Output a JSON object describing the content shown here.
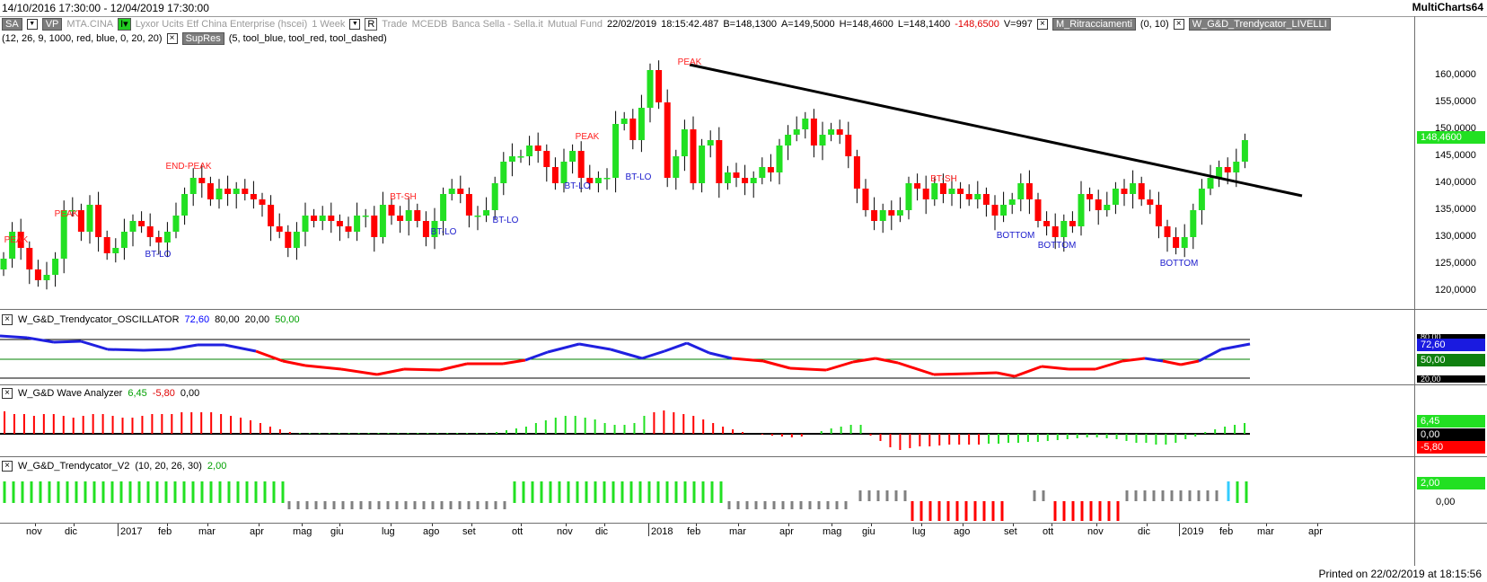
{
  "window": {
    "date_range": "14/10/2016 17:30:00 - 12/04/2019 17:30:00",
    "brand": "MultiCharts64"
  },
  "legend": {
    "row1": {
      "sa_label": "SA",
      "vp_label": "VP",
      "symbol": "MTA.CINA",
      "instrument": "Lyxor Ucits Etf China Enterprise (hscei)",
      "interval": "1 Week",
      "r_label": "R",
      "trade_label": "Trade",
      "exchange": "MCEDB",
      "broker": "Banca Sella - Sella.it",
      "fund_type": "Mutual Fund",
      "date": "22/02/2019",
      "time": "18:15:42.487",
      "bid": "B=148,1300",
      "ask": "A=149,5000",
      "high": "H=148,4600",
      "low": "L=148,1400",
      "change": "-148,6500",
      "volume": "V=997",
      "ind1": "M_Ritracciamenti",
      "ind1_params": "(0, 10)",
      "ind2": "W_G&D_Trendycator_LIVELLI"
    },
    "row2": {
      "ind2_params": "(12, 26, 9, 1000, red, blue, 0, 20, 20)",
      "ind3": "SupRes",
      "ind3_params": "(5, tool_blue, tool_red, tool_dashed)"
    }
  },
  "price_axis": {
    "ticks": [
      "160,0000",
      "155,0000",
      "150,0000",
      "145,0000",
      "140,0000",
      "135,0000",
      "130,0000",
      "125,0000",
      "120,0000"
    ],
    "last_price": "148,4600"
  },
  "annotations": [
    {
      "text": "PEAK",
      "kind": "peak"
    },
    {
      "text": "PEAK",
      "kind": "peak"
    },
    {
      "text": "BT-LO",
      "kind": "low"
    },
    {
      "text": "END-PEAK",
      "kind": "peak"
    },
    {
      "text": "BT-SH",
      "kind": "peak"
    },
    {
      "text": "BT-LO",
      "kind": "low"
    },
    {
      "text": "BT-LO",
      "kind": "low"
    },
    {
      "text": "PEAK",
      "kind": "peak"
    },
    {
      "text": "BT-LO",
      "kind": "low"
    },
    {
      "text": "BT-LO",
      "kind": "low"
    },
    {
      "text": "PEAK",
      "kind": "peak"
    },
    {
      "text": "BT-SH",
      "kind": "peak"
    },
    {
      "text": "BOTTOM",
      "kind": "low"
    },
    {
      "text": "BOTTOM",
      "kind": "low"
    },
    {
      "text": "BOTTOM",
      "kind": "low"
    }
  ],
  "oscillator": {
    "name": "W_G&D_Trendycator_OSCILLATOR",
    "v1": "72,60",
    "v2": "80,00",
    "v3": "20,00",
    "v4": "50,00",
    "axis_value": "72,60",
    "axis_mid": "50,00",
    "axis_top": "80,00",
    "axis_bottom": "20,00"
  },
  "wave": {
    "name": "W_G&D Wave Analyzer",
    "v1": "6,45",
    "v2": "-5,80",
    "v3": "0,00",
    "axis_pos": "6,45",
    "axis_zero": "0,00",
    "axis_neg": "-5,80"
  },
  "trendycator_v2": {
    "name": "W_G&D_Trendycator_V2",
    "params": "(10, 20, 26, 30)",
    "value": "2,00",
    "axis_value": "2,00",
    "axis_zero": "0,00"
  },
  "time_axis": {
    "labels": [
      "nov",
      "dic",
      "2017",
      "feb",
      "mar",
      "apr",
      "mag",
      "giu",
      "lug",
      "ago",
      "set",
      "ott",
      "nov",
      "dic",
      "2018",
      "feb",
      "mar",
      "apr",
      "mag",
      "giu",
      "lug",
      "ago",
      "set",
      "ott",
      "nov",
      "dic",
      "2019",
      "feb",
      "mar",
      "apr"
    ]
  },
  "footer": {
    "printed": "Printed on 22/02/2019 at 18:15:56"
  },
  "colors": {
    "up": "#22e022",
    "down": "#ff0000",
    "osc_blue": "#2020e0",
    "osc_red": "#ff0000",
    "neutral": "#808080",
    "cyan": "#33ccff"
  }
}
